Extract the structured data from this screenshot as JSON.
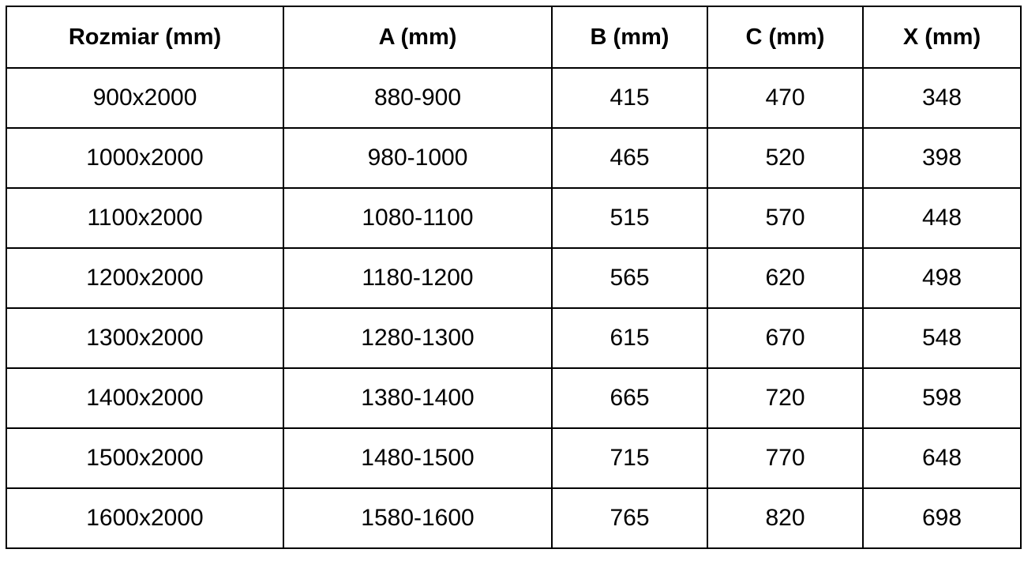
{
  "table": {
    "headers": [
      "Rozmiar (mm)",
      "A (mm)",
      "B (mm)",
      "C (mm)",
      "X (mm)"
    ],
    "rows": [
      [
        "900x2000",
        "880-900",
        "415",
        "470",
        "348"
      ],
      [
        "1000x2000",
        "980-1000",
        "465",
        "520",
        "398"
      ],
      [
        "1100x2000",
        "1080-1100",
        "515",
        "570",
        "448"
      ],
      [
        "1200x2000",
        "1180-1200",
        "565",
        "620",
        "498"
      ],
      [
        "1300x2000",
        "1280-1300",
        "615",
        "670",
        "548"
      ],
      [
        "1400x2000",
        "1380-1400",
        "665",
        "720",
        "598"
      ],
      [
        "1500x2000",
        "1480-1500",
        "715",
        "770",
        "648"
      ],
      [
        "1600x2000",
        "1580-1600",
        "765",
        "820",
        "698"
      ]
    ]
  },
  "colors": {
    "border": "#000000",
    "text": "#000000",
    "background": "#ffffff"
  }
}
